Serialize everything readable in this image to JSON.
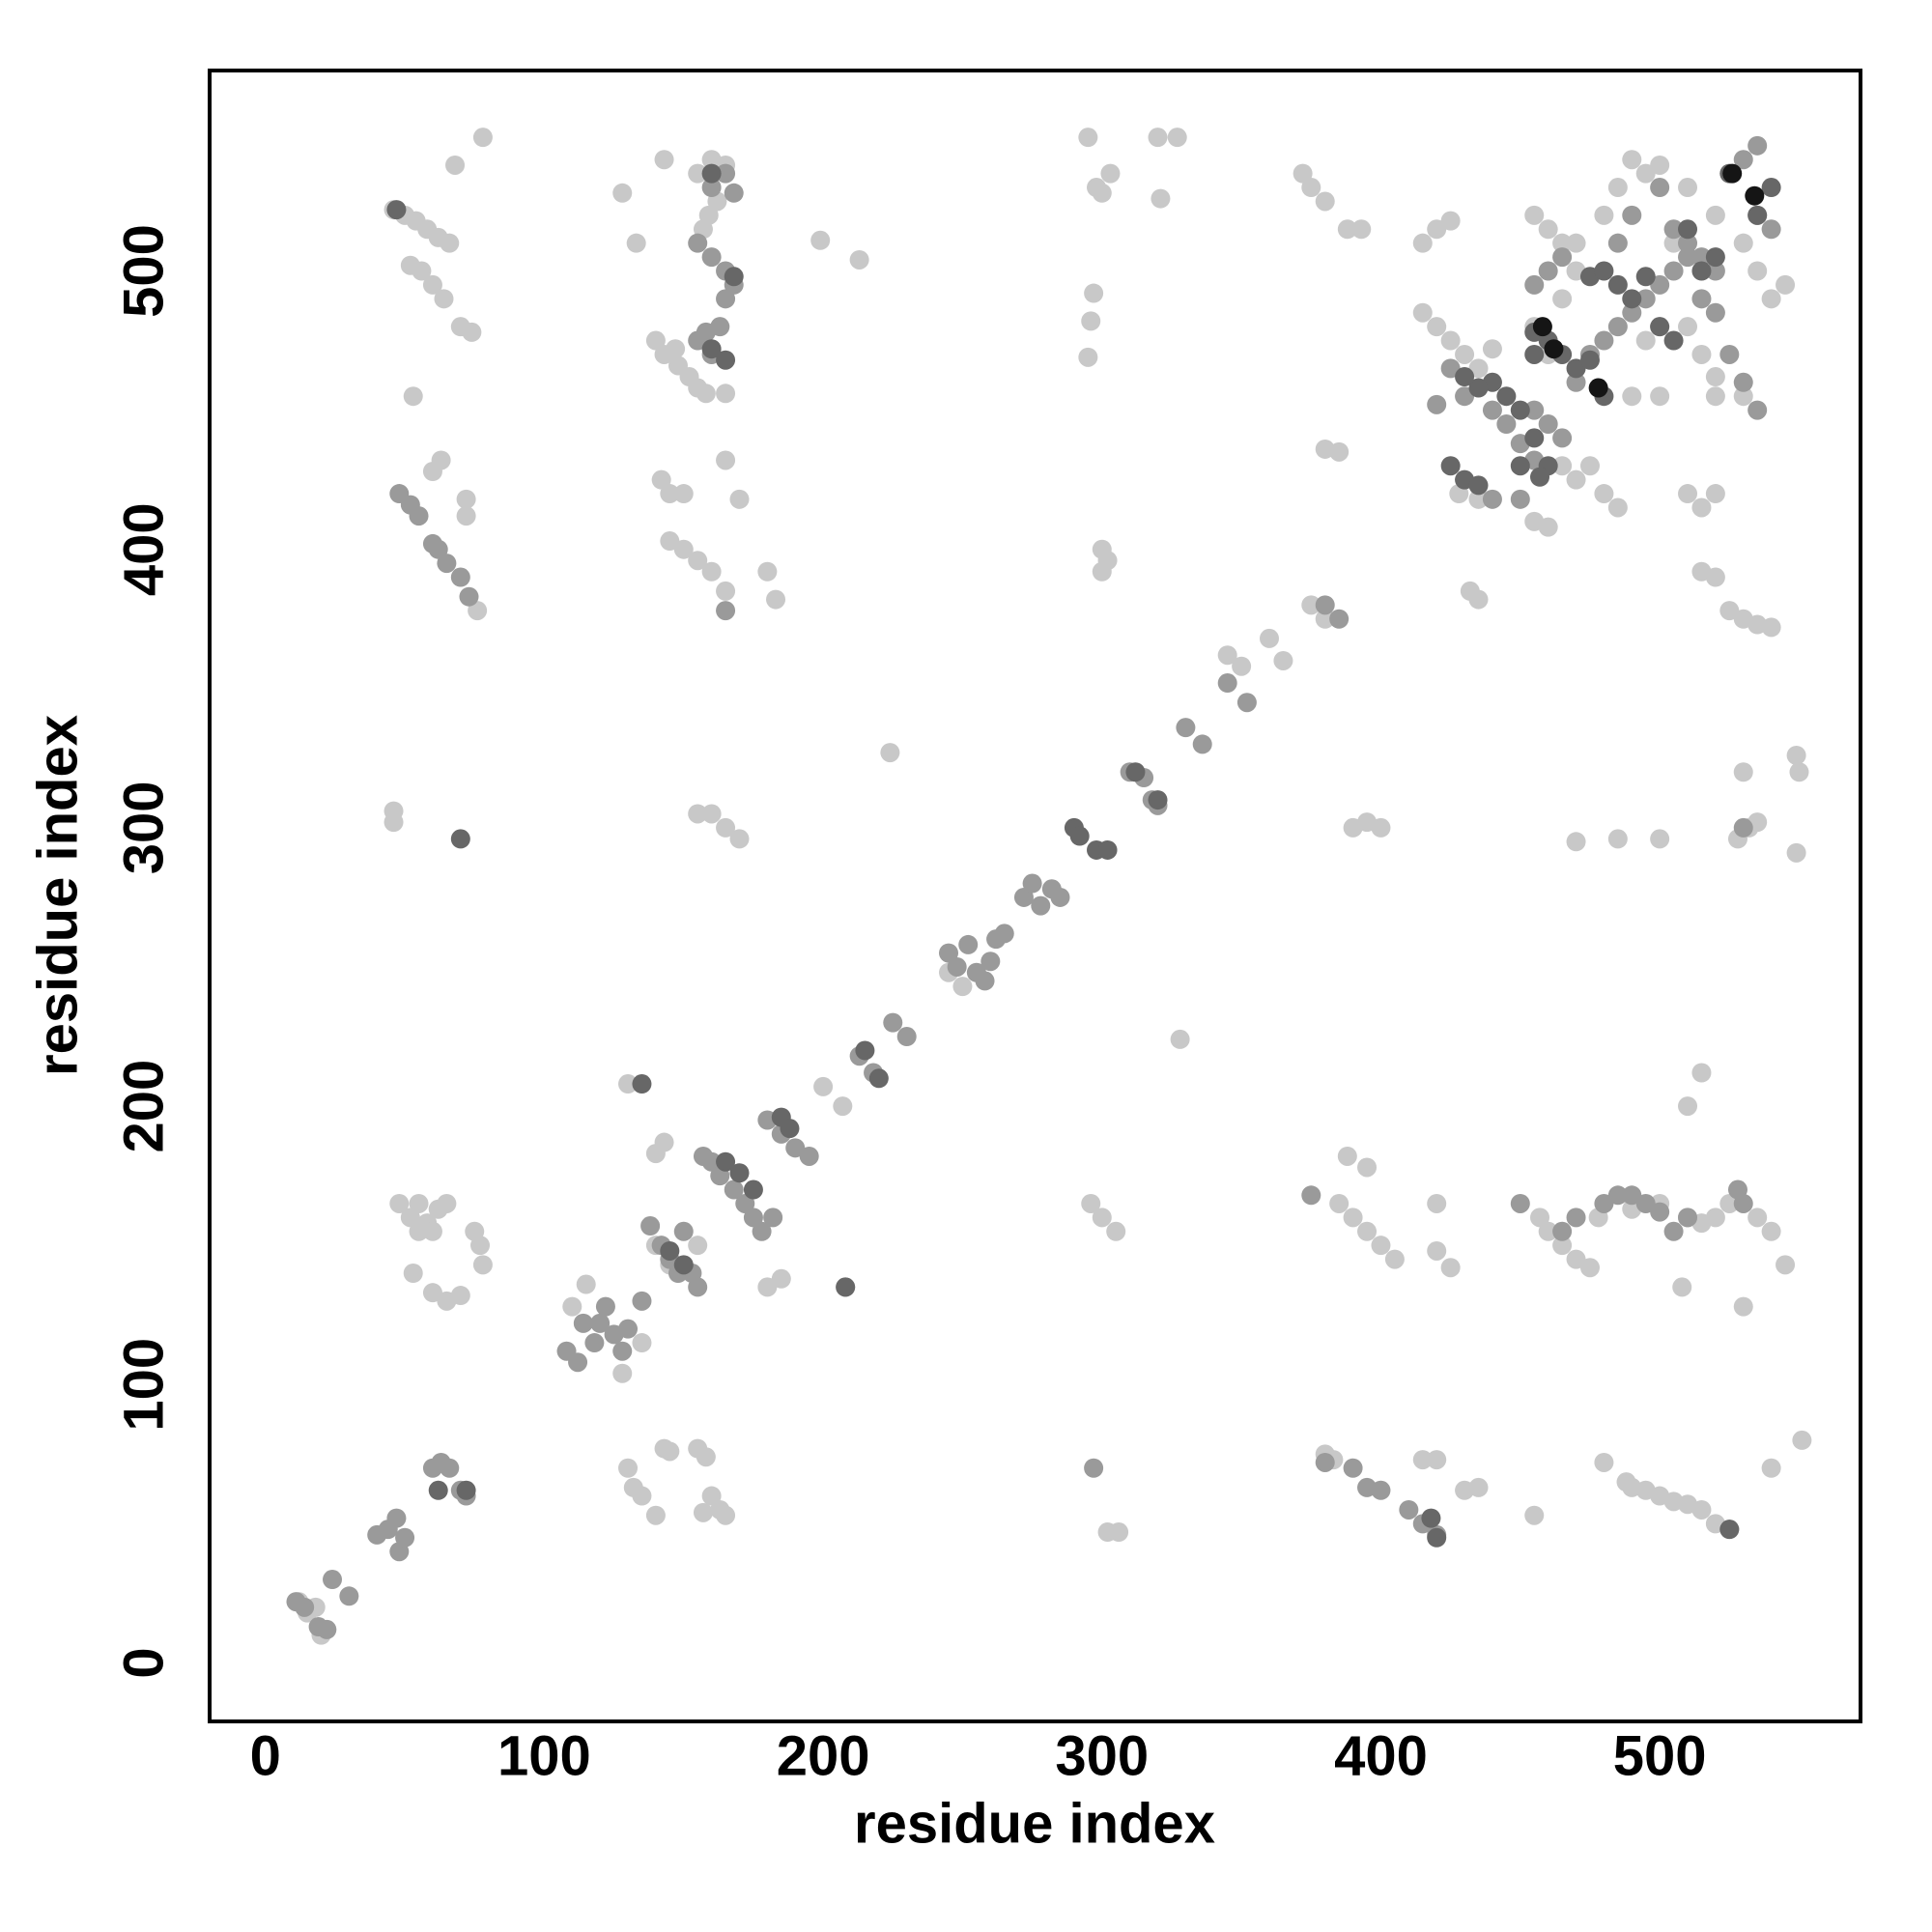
{
  "chart_data": {
    "type": "scatter",
    "xlabel": "residue index",
    "ylabel": "residue index",
    "xlim": [
      -20,
      572
    ],
    "ylim": [
      -21,
      572
    ],
    "xticks": [
      0,
      100,
      200,
      300,
      400,
      500
    ],
    "yticks": [
      0,
      100,
      200,
      300,
      400,
      500
    ],
    "grid": false,
    "series": [
      {
        "color": "#c8c8c8",
        "x": [
          48,
          52,
          55,
          58,
          60,
          62,
          65,
          55,
          53,
          60,
          65,
          70,
          75,
          77,
          78,
          46,
          50,
          54,
          58,
          62,
          66,
          52,
          56,
          60,
          64,
          70,
          74,
          68,
          53,
          78,
          60,
          63,
          72,
          72,
          76,
          46,
          46,
          130,
          132,
          135,
          143,
          145,
          155,
          158,
          160,
          163,
          165,
          157,
          140,
          140,
          143,
          148,
          152,
          155,
          158,
          165,
          147,
          157,
          159,
          162,
          155,
          160,
          165,
          143,
          128,
          133,
          142,
          145,
          150,
          145,
          150,
          155,
          160,
          165,
          180,
          183,
          165,
          170,
          155,
          160,
          165,
          170,
          140,
          145,
          155,
          140,
          143,
          110,
          115,
          128,
          135,
          130,
          180,
          185,
          200,
          207,
          199,
          213,
          224,
          328,
          295,
          298,
          300,
          303,
          297,
          296,
          295,
          320,
          327,
          321,
          300,
          300,
          302,
          296,
          300,
          305,
          302,
          306,
          372,
          375,
          380,
          388,
          393,
          380,
          385,
          390,
          395,
          400,
          388,
          395,
          385,
          390,
          395,
          400,
          405,
          380,
          383,
          415,
          420,
          420,
          425,
          420,
          430,
          435,
          455,
          415,
          420,
          425,
          415,
          420,
          425,
          430,
          435,
          440,
          428,
          435,
          432,
          435,
          455,
          460,
          465,
          470,
          480,
          485,
          490,
          495,
          500,
          470,
          465,
          455,
          460,
          465,
          470,
          475,
          480,
          485,
          455,
          460,
          457,
          460,
          465,
          470,
          475,
          478,
          490,
          500,
          510,
          515,
          520,
          525,
          535,
          540,
          545,
          490,
          495,
          500,
          505,
          510,
          515,
          520,
          480,
          488,
          508,
          530,
          510,
          515,
          520,
          515,
          520,
          525,
          530,
          535,
          540,
          530,
          528,
          532,
          535,
          549,
          550,
          549,
          551,
          540,
          515,
          510,
          485,
          470,
          500,
          510,
          515,
          520,
          520,
          530,
          540,
          545,
          535,
          530,
          520,
          510,
          505,
          500,
          495,
          490,
          500,
          18,
          20,
          22,
          12,
          15,
          245,
          250,
          345,
          350,
          360,
          365,
          375,
          380
        ],
        "values": [
          165,
          160,
          165,
          158,
          155,
          163,
          165,
          155,
          140,
          133,
          130,
          132,
          155,
          150,
          143,
          522,
          520,
          518,
          515,
          512,
          510,
          502,
          500,
          495,
          490,
          480,
          478,
          538,
          455,
          548,
          428,
          432,
          418,
          412,
          378,
          306,
          302,
          70,
          63,
          60,
          77,
          76,
          77,
          74,
          60,
          55,
          53,
          54,
          53,
          475,
          470,
          466,
          462,
          458,
          456,
          456,
          472,
          515,
          520,
          525,
          535,
          540,
          538,
          540,
          528,
          510,
          425,
          420,
          420,
          403,
          400,
          396,
          392,
          385,
          392,
          382,
          432,
          418,
          305,
          305,
          300,
          296,
          150,
          143,
          150,
          183,
          187,
          128,
          136,
          104,
          115,
          208,
          135,
          138,
          207,
          200,
          511,
          504,
          327,
          224,
          548,
          530,
          528,
          535,
          492,
          482,
          469,
          548,
          548,
          526,
          400,
          392,
          396,
          165,
          160,
          155,
          47,
          47,
          535,
          530,
          525,
          515,
          515,
          436,
          435,
          300,
          302,
          300,
          182,
          178,
          165,
          160,
          155,
          150,
          145,
          75,
          73,
          73,
          73,
          165,
          142,
          148,
          62,
          63,
          53,
          510,
          515,
          518,
          485,
          480,
          475,
          470,
          465,
          472,
          420,
          418,
          385,
          382,
          520,
          515,
          510,
          510,
          520,
          530,
          540,
          535,
          538,
          500,
          490,
          480,
          470,
          430,
          425,
          430,
          420,
          415,
          410,
          408,
          160,
          155,
          150,
          145,
          142,
          160,
          163,
          165,
          160,
          158,
          160,
          165,
          160,
          155,
          143,
          63,
          62,
          60,
          58,
          57,
          55,
          50,
          72,
          65,
          135,
          128,
          420,
          415,
          420,
          392,
          390,
          378,
          375,
          373,
          372,
          320,
          296,
          300,
          302,
          326,
          320,
          291,
          80,
          70,
          212,
          200,
          296,
          295,
          296,
          480,
          470,
          462,
          455,
          455,
          490,
          495,
          500,
          510,
          520,
          530,
          510,
          480,
          475,
          455,
          455,
          20,
          10,
          12,
          22,
          18,
          248,
          243,
          362,
          358,
          368,
          360,
          380,
          375
        ]
      },
      {
        "color": "#9a9a9a",
        "x": [
          11,
          14,
          19,
          22,
          24,
          30,
          40,
          44,
          48,
          50,
          47,
          60,
          63,
          66,
          70,
          72,
          108,
          112,
          114,
          118,
          122,
          125,
          128,
          120,
          130,
          135,
          138,
          142,
          145,
          148,
          150,
          153,
          155,
          157,
          160,
          163,
          168,
          172,
          175,
          178,
          182,
          180,
          185,
          190,
          195,
          208,
          213,
          218,
          225,
          230,
          245,
          248,
          252,
          255,
          258,
          260,
          262,
          265,
          272,
          275,
          278,
          282,
          285,
          310,
          315,
          318,
          320,
          330,
          336,
          345,
          352,
          380,
          385,
          48,
          52,
          55,
          60,
          62,
          65,
          70,
          73,
          165,
          155,
          158,
          160,
          163,
          165,
          168,
          165,
          160,
          155,
          160,
          165,
          168,
          297,
          375,
          380,
          390,
          395,
          400,
          410,
          415,
          420,
          450,
          465,
          470,
          480,
          485,
          490,
          495,
          500,
          505,
          510,
          525,
          528,
          530,
          420,
          425,
          430,
          440,
          445,
          450,
          455,
          440,
          450,
          455,
          460,
          465,
          470,
          475,
          480,
          485,
          490,
          495,
          500,
          505,
          510,
          515,
          520,
          525,
          530,
          535,
          455,
          460,
          465,
          485,
          490,
          500,
          505,
          510,
          515,
          520,
          535,
          540,
          530,
          535,
          530
        ],
        "values": [
          22,
          20,
          13,
          12,
          30,
          24,
          46,
          48,
          40,
          45,
          52,
          70,
          72,
          70,
          62,
          60,
          112,
          108,
          122,
          115,
          128,
          118,
          112,
          122,
          120,
          130,
          157,
          150,
          145,
          140,
          155,
          140,
          135,
          182,
          180,
          175,
          170,
          165,
          160,
          155,
          160,
          195,
          190,
          185,
          182,
          135,
          218,
          212,
          230,
          225,
          255,
          250,
          258,
          248,
          245,
          252,
          260,
          262,
          275,
          280,
          272,
          278,
          275,
          320,
          318,
          310,
          308,
          336,
          330,
          352,
          345,
          380,
          375,
          420,
          416,
          412,
          402,
          400,
          395,
          390,
          383,
          378,
          475,
          478,
          470,
          480,
          490,
          495,
          500,
          505,
          510,
          530,
          535,
          528,
          70,
          168,
          72,
          70,
          63,
          62,
          55,
          50,
          46,
          165,
          155,
          160,
          165,
          168,
          168,
          165,
          162,
          155,
          160,
          48,
          170,
          165,
          452,
          465,
          455,
          450,
          445,
          438,
          432,
          418,
          418,
          450,
          445,
          440,
          460,
          470,
          475,
          480,
          485,
          490,
          495,
          500,
          505,
          490,
          485,
          470,
          460,
          450,
          495,
          500,
          505,
          510,
          520,
          530,
          515,
          510,
          505,
          500,
          520,
          515,
          540,
          545,
          300
        ]
      },
      {
        "color": "#676767",
        "x": [
          47,
          70,
          62,
          72,
          135,
          208,
          145,
          150,
          165,
          170,
          175,
          185,
          188,
          215,
          220,
          290,
          292,
          298,
          302,
          312,
          320,
          160,
          165,
          160,
          168,
          420,
          418,
          525,
          450,
          455,
          460,
          445,
          440,
          435,
          430,
          425,
          430,
          435,
          455,
          460,
          465,
          470,
          475,
          480,
          485,
          490,
          495,
          500,
          505,
          515,
          520,
          510,
          525,
          535,
          540,
          450,
          457,
          455,
          475,
          480
        ],
        "values": [
          522,
          296,
          62,
          62,
          208,
          135,
          148,
          143,
          180,
          176,
          170,
          196,
          192,
          220,
          210,
          300,
          297,
          292,
          292,
          320,
          310,
          472,
          468,
          535,
          498,
          45,
          52,
          48,
          450,
          440,
          430,
          455,
          460,
          458,
          462,
          430,
          425,
          423,
          478,
          475,
          470,
          465,
          468,
          455,
          495,
          490,
          498,
          480,
          475,
          500,
          505,
          515,
          535,
          520,
          530,
          430,
          426,
          470,
          498,
          500
        ]
      },
      {
        "color": "#151515",
        "x": [
          526,
          534,
          462,
          478,
          458
        ],
        "values": [
          535,
          527,
          472,
          458,
          480
        ]
      }
    ]
  }
}
